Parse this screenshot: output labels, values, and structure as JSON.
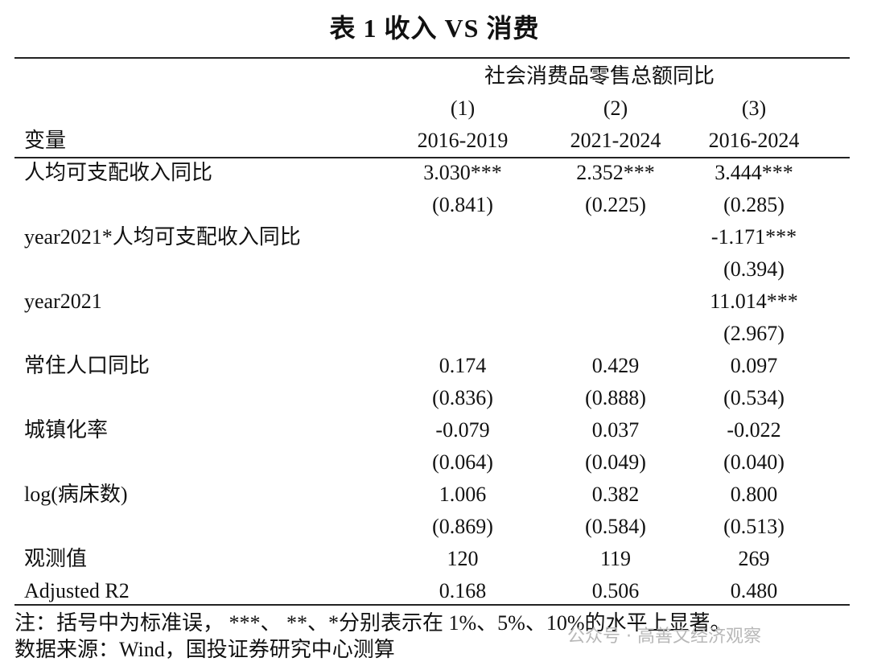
{
  "title": "表 1  收入 VS 消费",
  "table": {
    "group_header": "社会消费品零售总额同比",
    "column_numbers": [
      "(1)",
      "(2)",
      "(3)"
    ],
    "variable_header": "变量",
    "column_periods": [
      "2016-2019",
      "2021-2024",
      "2016-2024"
    ],
    "rows": [
      [
        "人均可支配收入同比",
        "3.030***",
        "2.352***",
        "3.444***"
      ],
      [
        null,
        "(0.841)",
        "(0.225)",
        "(0.285)"
      ],
      [
        "year2021*人均可支配收入同比",
        null,
        null,
        "-1.171***"
      ],
      [
        null,
        null,
        null,
        "(0.394)"
      ],
      [
        "year2021",
        null,
        null,
        "11.014***"
      ],
      [
        null,
        null,
        null,
        "(2.967)"
      ],
      [
        "常住人口同比",
        "0.174",
        "0.429",
        "0.097"
      ],
      [
        null,
        "(0.836)",
        "(0.888)",
        "(0.534)"
      ],
      [
        "城镇化率",
        "-0.079",
        "0.037",
        "-0.022"
      ],
      [
        null,
        "(0.064)",
        "(0.049)",
        "(0.040)"
      ],
      [
        "log(病床数)",
        "1.006",
        "0.382",
        "0.800"
      ],
      [
        null,
        "(0.869)",
        "(0.584)",
        "(0.513)"
      ],
      [
        "观测值",
        "120",
        "119",
        "269"
      ],
      [
        "Adjusted R2",
        "0.168",
        "0.506",
        "0.480"
      ]
    ]
  },
  "notes": [
    "注：括号中为标准误，  ***、 **、*分别表示在 1%、5%、10%的水平上显著。",
    "数据来源：Wind，国投证券研究中心测算"
  ],
  "watermark": "公众号 · 高善文经济观察"
}
